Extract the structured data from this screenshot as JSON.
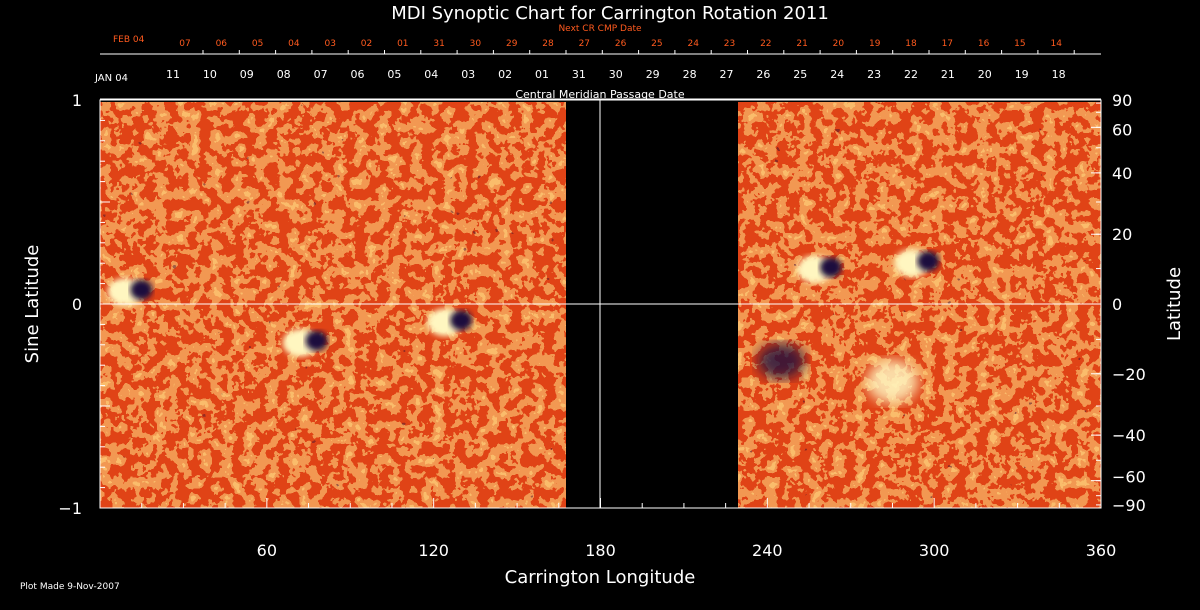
{
  "title": "MDI Synoptic Chart for Carrington Rotation 2011",
  "next_cr_label": "Next CR CMP Date",
  "next_cr_month": "FEB 04",
  "next_cr_dates": [
    "07",
    "06",
    "05",
    "04",
    "03",
    "02",
    "01",
    "31",
    "30",
    "29",
    "28",
    "27",
    "26",
    "25",
    "24",
    "23",
    "22",
    "21",
    "20",
    "19",
    "18",
    "17",
    "16",
    "15",
    "14"
  ],
  "current_month": "JAN 04",
  "current_dates": [
    "11",
    "10",
    "09",
    "08",
    "07",
    "06",
    "05",
    "04",
    "03",
    "02",
    "01",
    "31",
    "30",
    "29",
    "28",
    "27",
    "26",
    "25",
    "24",
    "23",
    "22",
    "21",
    "20",
    "19",
    "18"
  ],
  "cmp_label": "Central Meridian Passage Date",
  "x_axis": {
    "label": "Carrington Longitude",
    "ticks": [
      "60",
      "120",
      "180",
      "240",
      "300",
      "360"
    ]
  },
  "y_left": {
    "label": "Sine Latitude",
    "ticks": [
      "1",
      "0",
      "−1"
    ]
  },
  "y_right": {
    "label": "Latitude",
    "ticks": [
      "90",
      "60",
      "40",
      "20",
      "0",
      "−20",
      "−40",
      "−60",
      "−90"
    ]
  },
  "footer": "Plot Made  9-Nov-2007",
  "colors": {
    "accent_orange": "#ff5a1e",
    "background": "#000000",
    "field_base": "#e8461a",
    "positive": "#fff6c0",
    "negative": "#1a0a3c"
  },
  "data_gap_longitude": [
    170,
    229
  ],
  "active_regions": [
    {
      "lon": 12,
      "sinlat": 0.06,
      "polarity": "bipolar"
    },
    {
      "lon": 75,
      "sinlat": -0.19,
      "polarity": "bipolar"
    },
    {
      "lon": 127,
      "sinlat": -0.09,
      "polarity": "bipolar"
    },
    {
      "lon": 260,
      "sinlat": 0.17,
      "polarity": "bipolar"
    },
    {
      "lon": 295,
      "sinlat": 0.2,
      "polarity": "bipolar"
    },
    {
      "lon": 285,
      "sinlat": -0.38,
      "polarity": "positive"
    },
    {
      "lon": 245,
      "sinlat": -0.28,
      "polarity": "negative"
    }
  ]
}
